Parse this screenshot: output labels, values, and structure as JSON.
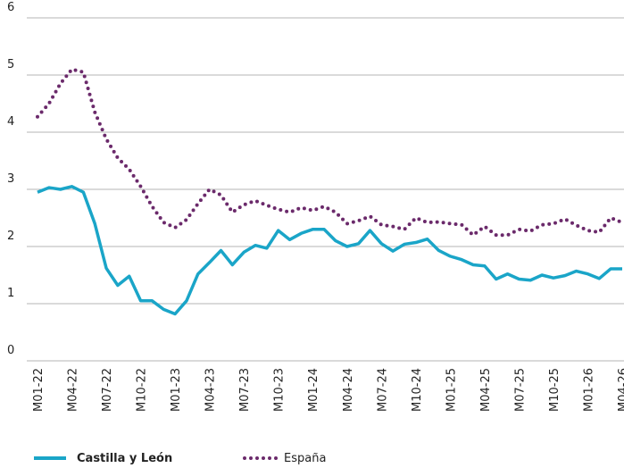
{
  "chart_data": {
    "type": "line",
    "categories": [
      "M01-22",
      null,
      null,
      "M04-22",
      null,
      null,
      "M07-22",
      null,
      null,
      "M10-22",
      null,
      null,
      "M01-23",
      null,
      null,
      "M04-23",
      null,
      null,
      "M07-23",
      null,
      null,
      "M10-23",
      null,
      null,
      "M01-24",
      null,
      null,
      "M04-24",
      null,
      null,
      "M07-24",
      null,
      null,
      "M10-24",
      null,
      null,
      "M01-25",
      null,
      null,
      "M04-25",
      null,
      null,
      "M07-25",
      null,
      null,
      "M10-25",
      null,
      null,
      "M01-26",
      null,
      null,
      "M04-26"
    ],
    "series": [
      {
        "name": "Castilla y León",
        "color": "#1aa5c8",
        "style": "solid",
        "values": [
          2.95,
          3.03,
          3.0,
          3.05,
          2.95,
          2.4,
          1.62,
          1.32,
          1.48,
          1.05,
          1.05,
          0.9,
          0.82,
          1.05,
          1.52,
          1.72,
          1.93,
          1.68,
          1.9,
          2.02,
          1.97,
          2.28,
          2.12,
          2.23,
          2.3,
          2.3,
          2.1,
          2.0,
          2.05,
          2.28,
          2.05,
          1.92,
          2.04,
          2.07,
          2.13,
          1.93,
          1.83,
          1.77,
          1.68,
          1.66,
          1.43,
          1.52,
          1.43,
          1.41,
          1.5,
          1.45,
          1.49,
          1.57,
          1.52,
          1.44,
          1.61,
          1.61
        ]
      },
      {
        "name": "España",
        "color": "#6b2a6b",
        "style": "dotted",
        "values": [
          4.27,
          4.5,
          4.85,
          5.1,
          5.05,
          4.35,
          3.88,
          3.55,
          3.35,
          3.05,
          2.7,
          2.42,
          2.33,
          2.47,
          2.75,
          3.0,
          2.9,
          2.6,
          2.73,
          2.8,
          2.72,
          2.65,
          2.6,
          2.68,
          2.63,
          2.7,
          2.6,
          2.4,
          2.45,
          2.53,
          2.38,
          2.35,
          2.3,
          2.5,
          2.42,
          2.43,
          2.4,
          2.38,
          2.2,
          2.35,
          2.2,
          2.2,
          2.3,
          2.27,
          2.38,
          2.4,
          2.48,
          2.37,
          2.28,
          2.25,
          2.5,
          2.42
        ]
      }
    ],
    "ylim": [
      0,
      6
    ],
    "yticks": [
      0,
      1,
      2,
      3,
      4,
      5,
      6
    ],
    "grid": true,
    "legend": "bottom"
  }
}
